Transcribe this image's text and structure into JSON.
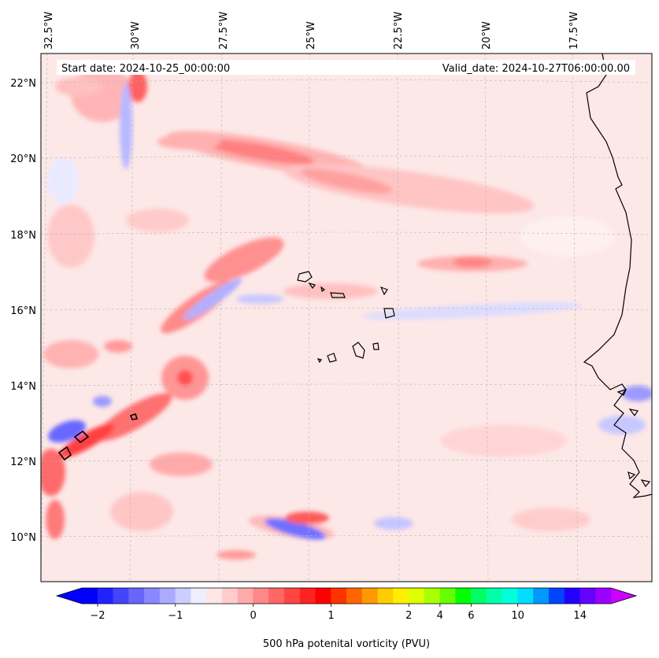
{
  "header": {
    "start_date": "Start date: 2024-10-25_00:00:00",
    "valid_date": "Valid_date: 2024-10-27T06:00:00.00"
  },
  "map": {
    "lon_labels": [
      "32.5°W",
      "30°W",
      "27.5°W",
      "25°W",
      "22.5°W",
      "20°W",
      "17.5°W"
    ],
    "lat_labels": [
      "22°N",
      "20°N",
      "18°N",
      "16°N",
      "14°N",
      "12°N",
      "10°N"
    ],
    "background_color": "#fde8e8"
  },
  "colorbar": {
    "title": "500 hPa potenital vorticity (PVU)",
    "tick_labels": [
      "−2",
      "−1",
      "0",
      "1",
      "2",
      "4",
      "6",
      "10",
      "14"
    ],
    "colors": [
      "#0000ff",
      "#2222ff",
      "#4444ff",
      "#6666ff",
      "#8888ff",
      "#aaaaff",
      "#ccccff",
      "#eeeeff",
      "#ffe6e6",
      "#ffcccc",
      "#ffaaaa",
      "#ff8888",
      "#ff6666",
      "#ff4444",
      "#ff2222",
      "#ff0000",
      "#ff3300",
      "#ff6600",
      "#ff9900",
      "#ffcc00",
      "#ffee00",
      "#ddff00",
      "#aaff00",
      "#66ff00",
      "#00ff00",
      "#00ff66",
      "#00ffaa",
      "#00ffdd",
      "#00ddff",
      "#0099ff",
      "#0044ff",
      "#2200ff",
      "#6600ff",
      "#9900ff"
    ],
    "under_color": "#0000ff",
    "over_color": "#cc00ff"
  }
}
